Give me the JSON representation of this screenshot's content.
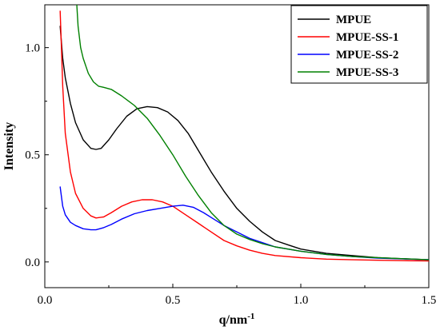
{
  "chart_data": {
    "type": "line",
    "title": "",
    "xlabel": "q/nm",
    "xlabel_superscript": "-1",
    "ylabel": "Intensity",
    "xlim": [
      0.0,
      1.5
    ],
    "ylim": [
      -0.12,
      1.2
    ],
    "x_ticks": [
      0.0,
      0.5,
      1.0,
      1.5
    ],
    "x_tick_labels": [
      "0.0",
      "0.5",
      "1.0",
      "1.5"
    ],
    "y_ticks": [
      0.0,
      0.5,
      1.0
    ],
    "y_tick_labels": [
      "0.0",
      "0.5",
      "1.0"
    ],
    "grid": false,
    "legend_position": "top-right",
    "series": [
      {
        "name": "MPUE",
        "color": "#000000",
        "x": [
          0.06,
          0.07,
          0.08,
          0.1,
          0.12,
          0.15,
          0.18,
          0.2,
          0.22,
          0.25,
          0.28,
          0.32,
          0.36,
          0.4,
          0.44,
          0.48,
          0.52,
          0.56,
          0.6,
          0.65,
          0.7,
          0.75,
          0.8,
          0.85,
          0.9,
          0.95,
          1.0,
          1.1,
          1.2,
          1.3,
          1.4,
          1.5
        ],
        "y": [
          1.1,
          0.95,
          0.86,
          0.74,
          0.65,
          0.57,
          0.53,
          0.525,
          0.53,
          0.57,
          0.62,
          0.68,
          0.715,
          0.725,
          0.72,
          0.7,
          0.66,
          0.6,
          0.52,
          0.42,
          0.33,
          0.25,
          0.19,
          0.14,
          0.1,
          0.08,
          0.06,
          0.04,
          0.03,
          0.02,
          0.015,
          0.01
        ]
      },
      {
        "name": "MPUE-SS-1",
        "color": "#ff0000",
        "x": [
          0.06,
          0.065,
          0.07,
          0.08,
          0.1,
          0.12,
          0.15,
          0.18,
          0.2,
          0.23,
          0.26,
          0.3,
          0.34,
          0.38,
          0.42,
          0.46,
          0.5,
          0.55,
          0.6,
          0.65,
          0.7,
          0.75,
          0.8,
          0.85,
          0.9,
          1.0,
          1.1,
          1.2,
          1.3,
          1.4,
          1.5
        ],
        "y": [
          1.17,
          1.0,
          0.82,
          0.6,
          0.42,
          0.32,
          0.25,
          0.215,
          0.205,
          0.21,
          0.23,
          0.26,
          0.28,
          0.29,
          0.29,
          0.28,
          0.26,
          0.22,
          0.18,
          0.14,
          0.1,
          0.075,
          0.055,
          0.04,
          0.03,
          0.02,
          0.013,
          0.01,
          0.008,
          0.006,
          0.005
        ]
      },
      {
        "name": "MPUE-SS-2",
        "color": "#0000ff",
        "x": [
          0.06,
          0.07,
          0.08,
          0.1,
          0.12,
          0.15,
          0.18,
          0.2,
          0.23,
          0.26,
          0.3,
          0.35,
          0.4,
          0.45,
          0.5,
          0.54,
          0.58,
          0.62,
          0.66,
          0.7,
          0.75,
          0.8,
          0.85,
          0.9,
          1.0,
          1.1,
          1.2,
          1.3,
          1.4,
          1.5
        ],
        "y": [
          0.35,
          0.26,
          0.22,
          0.185,
          0.17,
          0.155,
          0.15,
          0.15,
          0.16,
          0.175,
          0.2,
          0.225,
          0.24,
          0.25,
          0.26,
          0.265,
          0.255,
          0.23,
          0.2,
          0.17,
          0.14,
          0.11,
          0.09,
          0.07,
          0.05,
          0.035,
          0.025,
          0.018,
          0.014,
          0.01
        ]
      },
      {
        "name": "MPUE-SS-3",
        "color": "#008000",
        "x": [
          0.125,
          0.13,
          0.14,
          0.15,
          0.17,
          0.19,
          0.21,
          0.23,
          0.26,
          0.3,
          0.35,
          0.4,
          0.45,
          0.5,
          0.55,
          0.6,
          0.65,
          0.7,
          0.75,
          0.8,
          0.85,
          0.9,
          0.95,
          1.0,
          1.1,
          1.2,
          1.3,
          1.4,
          1.5
        ],
        "y": [
          1.2,
          1.1,
          1.0,
          0.95,
          0.88,
          0.84,
          0.82,
          0.815,
          0.805,
          0.775,
          0.73,
          0.67,
          0.59,
          0.5,
          0.4,
          0.31,
          0.23,
          0.17,
          0.13,
          0.105,
          0.085,
          0.07,
          0.06,
          0.05,
          0.035,
          0.025,
          0.02,
          0.015,
          0.01
        ]
      }
    ]
  }
}
